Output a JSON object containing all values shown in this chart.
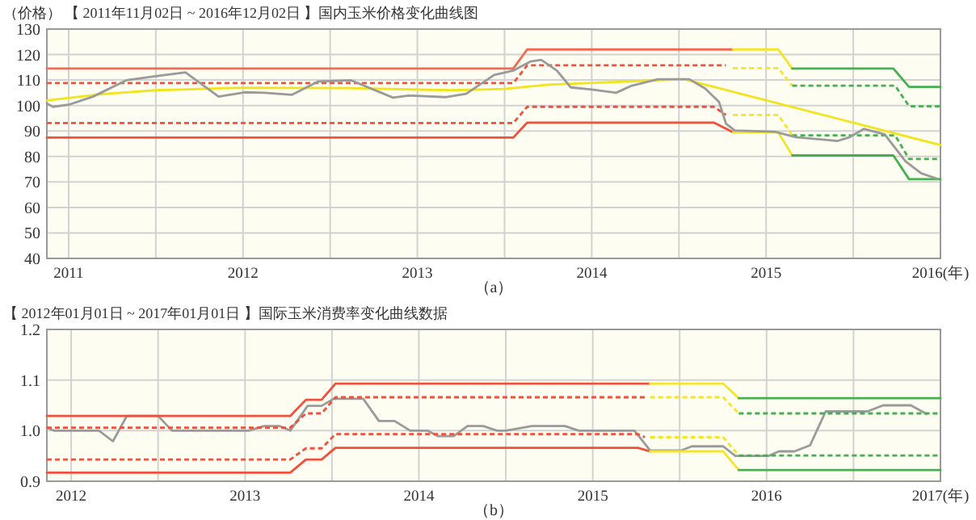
{
  "chart_data": [
    {
      "type": "line",
      "ylabel": "（价格）",
      "title": "【 2011年11月02日 ~ 2016年12月02日 】国内玉米价格变化曲线图",
      "annotations": [
        "（a）"
      ],
      "grid": true,
      "xlim": [
        2010.875,
        2016.0
      ],
      "xticks": [
        {
          "value": 2011,
          "label": "2011"
        },
        {
          "value": 2011.5,
          "label": null
        },
        {
          "value": 2012,
          "label": "2012"
        },
        {
          "value": 2012.5,
          "label": null
        },
        {
          "value": 2013,
          "label": "2013"
        },
        {
          "value": 2013.5,
          "label": null
        },
        {
          "value": 2014,
          "label": "2014"
        },
        {
          "value": 2014.5,
          "label": null
        },
        {
          "value": 2015,
          "label": "2015"
        },
        {
          "value": 2015.5,
          "label": null
        },
        {
          "value": 2016,
          "label": "2016(年)"
        }
      ],
      "ylim": [
        40,
        130
      ],
      "yticks": [
        40,
        50,
        60,
        70,
        80,
        90,
        100,
        110,
        120,
        130
      ],
      "series": [
        {
          "color": "#f06a55",
          "line_style": "solid",
          "x": [
            2010.875,
            2013.55,
            2013.63,
            2014.81
          ],
          "values": [
            114.5,
            114.5,
            122,
            122
          ]
        },
        {
          "color": "#f5e52a",
          "line_style": "solid",
          "x": [
            2014.81,
            2015.07,
            2015.15
          ],
          "values": [
            122,
            122,
            114.5
          ]
        },
        {
          "color": "#45b050",
          "line_style": "solid",
          "x": [
            2015.15,
            2015.73,
            2015.82,
            2016.0
          ],
          "values": [
            114.5,
            114.5,
            107.3,
            107.3
          ]
        },
        {
          "color": "#f0503c",
          "line_style": "dashed",
          "x": [
            2010.875,
            2013.55,
            2013.63,
            2014.77
          ],
          "values": [
            108.8,
            108.8,
            115.8,
            115.8
          ]
        },
        {
          "color": "#f5e52a",
          "line_style": "dashed",
          "x": [
            2014.81,
            2015.07,
            2015.15
          ],
          "values": [
            114.7,
            114.7,
            107.8
          ]
        },
        {
          "color": "#45b050",
          "line_style": "dashed",
          "x": [
            2015.15,
            2015.74,
            2015.82,
            2016.0
          ],
          "values": [
            107.8,
            107.8,
            99.7,
            99.7
          ]
        },
        {
          "color": "#f0503c",
          "line_style": "dashed",
          "x": [
            2010.875,
            2013.55,
            2013.63,
            2014.7,
            2014.77
          ],
          "values": [
            93.1,
            93.1,
            99.5,
            99.5,
            96.3
          ]
        },
        {
          "color": "#f5e52a",
          "line_style": "dashed",
          "x": [
            2014.81,
            2015.07,
            2015.15
          ],
          "values": [
            96.3,
            96.3,
            88.3
          ]
        },
        {
          "color": "#45b050",
          "line_style": "dashed",
          "x": [
            2015.15,
            2015.74,
            2015.82,
            2016.0
          ],
          "values": [
            88.3,
            88.3,
            79.0,
            79.0
          ]
        },
        {
          "color": "#f0503c",
          "line_style": "solid",
          "x": [
            2010.875,
            2013.55,
            2013.63,
            2014.7,
            2014.81
          ],
          "values": [
            87.4,
            87.4,
            93.3,
            93.3,
            89.5
          ]
        },
        {
          "color": "#f5e52a",
          "line_style": "solid",
          "x": [
            2014.81,
            2015.07,
            2015.15
          ],
          "values": [
            89.5,
            89.5,
            80.4
          ]
        },
        {
          "color": "#45b050",
          "line_style": "solid",
          "x": [
            2015.15,
            2015.73,
            2015.82,
            2016.0
          ],
          "values": [
            80.4,
            80.4,
            71.1,
            71.1
          ]
        },
        {
          "color": "#f2e41c",
          "line_style": "solid",
          "x": [
            2010.875,
            2011.2,
            2011.5,
            2012.0,
            2012.6,
            2013.2,
            2013.5,
            2013.75,
            2014.53,
            2016.0
          ],
          "values": [
            102,
            104.5,
            106,
            107,
            106.8,
            106,
            106.5,
            108.2,
            110.3,
            84.5
          ]
        },
        {
          "color": "#9a9a9a",
          "line_style": "solid",
          "x": [
            2010.875,
            2010.91,
            2011.0,
            2011.14,
            2011.33,
            2011.49,
            2011.67,
            2011.86,
            2012.01,
            2012.12,
            2012.28,
            2012.43,
            2012.62,
            2012.86,
            2012.95,
            2013.16,
            2013.28,
            2013.44,
            2013.55,
            2013.65,
            2013.71,
            2013.8,
            2013.88,
            2014.0,
            2014.14,
            2014.23,
            2014.38,
            2014.56,
            2014.65,
            2014.73,
            2014.77,
            2014.82,
            2015.05,
            2015.17,
            2015.41,
            2015.48,
            2015.56,
            2015.68,
            2015.8,
            2015.89,
            2015.98
          ],
          "values": [
            100.8,
            99.5,
            100.3,
            103.5,
            109.9,
            111.4,
            113,
            103.5,
            105.2,
            105,
            104.2,
            109.4,
            109.9,
            103.1,
            103.9,
            103.3,
            104.6,
            112,
            113.7,
            117.3,
            117.9,
            113.7,
            107.1,
            106.3,
            105,
            107.8,
            110.3,
            110.3,
            106.7,
            101.4,
            92.9,
            90.2,
            89.7,
            87.6,
            86.1,
            87.6,
            90.8,
            88.7,
            78.1,
            73.4,
            71.3
          ]
        }
      ]
    },
    {
      "type": "line",
      "title": "【 2012年01月01日 ~ 2017年01月01日 】国际玉米消费率变化曲线数据",
      "annotations": [
        "（b）"
      ],
      "grid": true,
      "xlim": [
        2011.86,
        2017.0
      ],
      "xticks": [
        {
          "value": 2012,
          "label": "2012"
        },
        {
          "value": 2012.5,
          "label": null
        },
        {
          "value": 2013,
          "label": "2013"
        },
        {
          "value": 2013.5,
          "label": null
        },
        {
          "value": 2014,
          "label": "2014"
        },
        {
          "value": 2014.5,
          "label": null
        },
        {
          "value": 2015,
          "label": "2015"
        },
        {
          "value": 2015.5,
          "label": null
        },
        {
          "value": 2016,
          "label": "2016"
        },
        {
          "value": 2016.5,
          "label": null
        },
        {
          "value": 2017,
          "label": "2017(年)"
        }
      ],
      "ylim": [
        0.9,
        1.2
      ],
      "yticks": [
        0.9,
        {
          "value": 1,
          "label": "1.0"
        },
        1.1,
        1.2
      ],
      "series": [
        {
          "color": "#9a9a9a",
          "line_style": "solid",
          "x": [
            2011.86,
            2011.9,
            2012.16,
            2012.24,
            2012.32,
            2012.5,
            2012.58,
            2013.02,
            2013.11,
            2013.2,
            2013.26,
            2013.36,
            2013.44,
            2013.51,
            2013.68,
            2013.77,
            2013.86,
            2013.95,
            2014.05,
            2014.11,
            2014.2,
            2014.28,
            2014.37,
            2014.45,
            2014.5,
            2014.65,
            2014.84,
            2014.92,
            2015.24,
            2015.33,
            2015.51,
            2015.57,
            2015.75,
            2015.82,
            2016.01,
            2016.07,
            2016.16,
            2016.25,
            2016.34,
            2016.58,
            2016.67,
            2016.83,
            2016.92
          ],
          "values": [
            1.006,
            1.0,
            1.0,
            0.979,
            1.029,
            1.029,
            1.0,
            1.0,
            1.009,
            1.009,
            1.0,
            1.049,
            1.049,
            1.063,
            1.063,
            1.019,
            1.019,
            1.0,
            1.0,
            0.989,
            0.989,
            1.009,
            1.009,
            1.0,
            1.0,
            1.009,
            1.009,
            1.0,
            1.0,
            0.961,
            0.961,
            0.969,
            0.969,
            0.95,
            0.95,
            0.959,
            0.959,
            0.971,
            1.038,
            1.038,
            1.05,
            1.05,
            1.033
          ]
        },
        {
          "color": "#f0503c",
          "line_style": "solid",
          "x": [
            2011.86,
            2013.26,
            2013.35,
            2013.44,
            2013.52,
            2015.33
          ],
          "values": [
            1.029,
            1.029,
            1.061,
            1.061,
            1.093,
            1.093
          ]
        },
        {
          "color": "#f5e52a",
          "line_style": "solid",
          "x": [
            2015.33,
            2015.75,
            2015.84
          ],
          "values": [
            1.093,
            1.093,
            1.064
          ]
        },
        {
          "color": "#45b050",
          "line_style": "solid",
          "x": [
            2015.84,
            2017.0
          ],
          "values": [
            1.064,
            1.064
          ]
        },
        {
          "color": "#f0503c",
          "line_style": "dashed",
          "x": [
            2011.86,
            2013.26,
            2013.35,
            2013.44,
            2013.52,
            2015.3
          ],
          "values": [
            1.006,
            1.006,
            1.034,
            1.034,
            1.066,
            1.066
          ]
        },
        {
          "color": "#f5e52a",
          "line_style": "dashed",
          "x": [
            2015.33,
            2015.75,
            2015.84
          ],
          "values": [
            1.066,
            1.066,
            1.034
          ]
        },
        {
          "color": "#45b050",
          "line_style": "dashed",
          "x": [
            2015.84,
            2017.0
          ],
          "values": [
            1.034,
            1.034
          ]
        },
        {
          "color": "#f0503c",
          "line_style": "dashed",
          "x": [
            2011.86,
            2013.26,
            2013.35,
            2013.44,
            2013.52,
            2015.26,
            2015.3
          ],
          "values": [
            0.943,
            0.943,
            0.965,
            0.965,
            0.993,
            0.993,
            0.987
          ]
        },
        {
          "color": "#f5e52a",
          "line_style": "dashed",
          "x": [
            2015.33,
            2015.75,
            2015.84
          ],
          "values": [
            0.987,
            0.987,
            0.951
          ]
        },
        {
          "color": "#45b050",
          "line_style": "dashed",
          "x": [
            2015.84,
            2017.0
          ],
          "values": [
            0.951,
            0.951
          ]
        },
        {
          "color": "#f0503c",
          "line_style": "solid",
          "x": [
            2011.86,
            2013.26,
            2013.35,
            2013.44,
            2013.52,
            2015.26,
            2015.33
          ],
          "values": [
            0.917,
            0.917,
            0.943,
            0.943,
            0.966,
            0.966,
            0.959
          ]
        },
        {
          "color": "#f5e52a",
          "line_style": "solid",
          "x": [
            2015.33,
            2015.75,
            2015.84
          ],
          "values": [
            0.959,
            0.959,
            0.922
          ]
        },
        {
          "color": "#45b050",
          "line_style": "solid",
          "x": [
            2015.84,
            2017.0
          ],
          "values": [
            0.922,
            0.922
          ]
        }
      ]
    }
  ]
}
